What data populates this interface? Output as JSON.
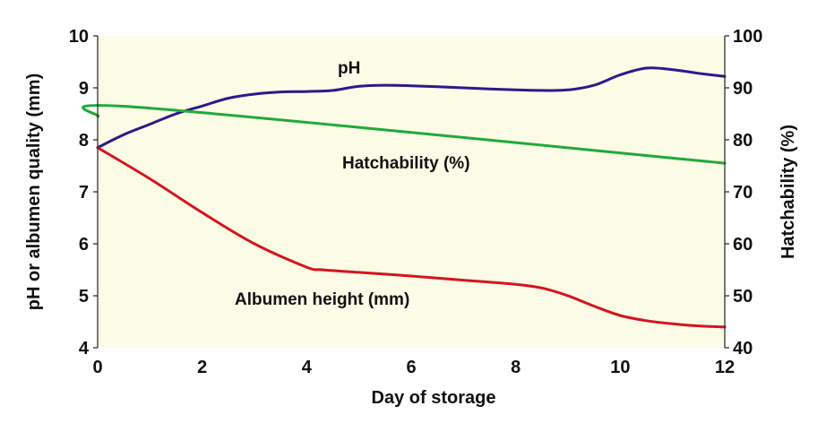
{
  "chart_data": {
    "type": "line",
    "title": "",
    "xlabel": "Day of storage",
    "ylabel_left": "pH or albumen quality (mm)",
    "ylabel_right": "Hatchability (%)",
    "xlim": [
      0,
      12
    ],
    "ylim_left": [
      4,
      10
    ],
    "ylim_right": [
      40,
      100
    ],
    "x_ticks": [
      "0",
      "2",
      "4",
      "6",
      "8",
      "10",
      "12"
    ],
    "y_ticks_left": [
      "4",
      "5",
      "6",
      "7",
      "8",
      "9",
      "10"
    ],
    "y_ticks_right": [
      "40",
      "50",
      "60",
      "70",
      "80",
      "90",
      "100"
    ],
    "grid": false,
    "colors": {
      "plot_background": "#fbfbe6",
      "ph": "#2b1a8c",
      "hatchability": "#1faa3a",
      "albumen": "#d4141e"
    },
    "series": [
      {
        "name": "pH",
        "label": "pH",
        "axis": "left",
        "x": [
          0,
          0.5,
          1,
          1.5,
          2,
          2.5,
          3,
          3.5,
          4,
          4.5,
          5,
          5.5,
          6,
          6.5,
          7,
          7.5,
          8,
          8.5,
          9,
          9.5,
          10,
          10.5,
          11,
          11.5,
          12
        ],
        "values": [
          7.85,
          8.1,
          8.3,
          8.5,
          8.65,
          8.8,
          8.88,
          8.92,
          8.93,
          8.95,
          9.03,
          9.05,
          9.04,
          9.02,
          9.0,
          8.98,
          8.96,
          8.95,
          8.96,
          9.05,
          9.25,
          9.38,
          9.35,
          9.28,
          9.22
        ]
      },
      {
        "name": "Hatchability (%)",
        "label": "Hatchability (%)",
        "axis": "right",
        "x": [
          0,
          0.85,
          12
        ],
        "values": [
          84.5,
          86.2,
          75.5
        ]
      },
      {
        "name": "Albumen height (mm)",
        "label": "Albumen height (mm)",
        "axis": "left",
        "x": [
          0,
          1,
          2,
          3,
          4,
          4.3,
          5,
          6,
          7,
          8,
          8.5,
          9,
          9.5,
          10,
          10.5,
          11,
          11.5,
          12
        ],
        "values": [
          7.85,
          7.25,
          6.6,
          6.0,
          5.55,
          5.5,
          5.45,
          5.38,
          5.3,
          5.22,
          5.15,
          5.0,
          4.8,
          4.62,
          4.52,
          4.46,
          4.42,
          4.4
        ]
      }
    ]
  }
}
